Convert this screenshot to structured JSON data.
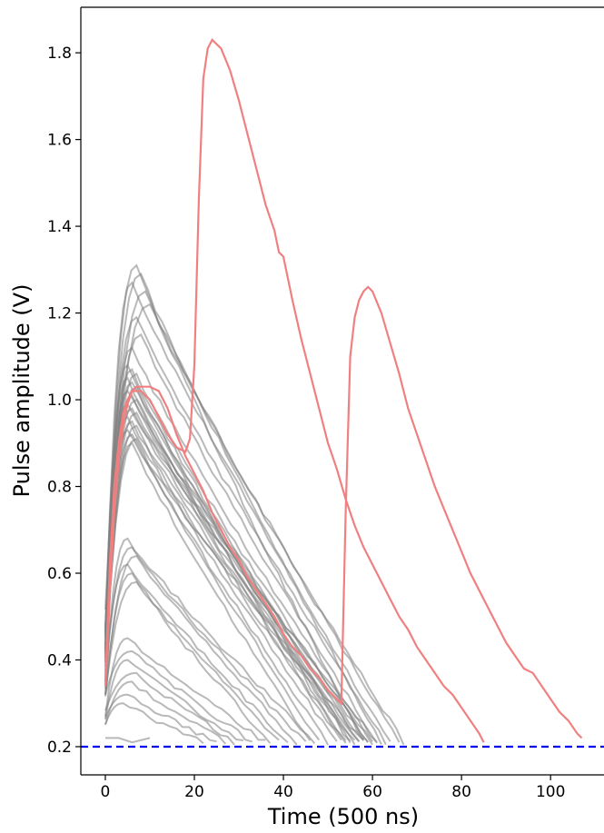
{
  "chart_data": {
    "type": "line",
    "title": "",
    "xlabel": "Time (500 ns)",
    "ylabel": "Pulse amplitude (V)",
    "xlim": [
      -5.5,
      112
    ],
    "ylim": [
      0.135,
      1.905
    ],
    "xticks": [
      0,
      20,
      40,
      60,
      80,
      100
    ],
    "yticks": [
      0.2,
      0.4,
      0.6,
      0.8,
      1.0,
      1.2,
      1.4,
      1.6,
      1.8
    ],
    "grid": false,
    "colors": {
      "gray_traces": "#808080",
      "highlighted_traces": "#f08080",
      "threshold": "#0000ee"
    },
    "threshold": {
      "y": 0.2,
      "style": "dashed"
    },
    "gray_trace_families": [
      {
        "peak_amplitudes": [
          1.31,
          1.29,
          1.27,
          1.25,
          1.22,
          1.19,
          1.15,
          1.12
        ],
        "peak_times": [
          7,
          8,
          6,
          9,
          10,
          7,
          8,
          6
        ],
        "end_times": [
          58,
          62,
          64,
          66,
          67,
          63,
          61,
          60
        ]
      },
      {
        "peak_amplitudes": [
          1.08,
          1.07,
          1.06,
          1.05,
          1.04,
          1.03,
          1.02,
          1.01,
          1.0,
          0.99,
          0.98,
          0.97,
          0.96,
          0.95,
          0.94,
          0.93,
          0.92,
          0.91,
          0.9
        ],
        "peak_times": [
          5,
          6,
          7,
          5,
          6,
          7,
          5,
          6,
          7,
          5,
          6,
          7,
          5,
          6,
          7,
          5,
          6,
          7,
          6
        ],
        "end_times": [
          55,
          57,
          59,
          54,
          56,
          58,
          60,
          53,
          55,
          57,
          59,
          61,
          52,
          54,
          56,
          58,
          50,
          48,
          46
        ]
      },
      {
        "peak_amplitudes": [
          0.68,
          0.66,
          0.64,
          0.62,
          0.6,
          0.58
        ],
        "peak_times": [
          5,
          6,
          7,
          5,
          6,
          7
        ],
        "end_times": [
          47,
          45,
          43,
          41,
          39,
          37
        ]
      },
      {
        "peak_amplitudes": [
          0.45,
          0.42,
          0.4,
          0.37,
          0.35,
          0.32,
          0.3
        ],
        "peak_times": [
          5,
          6,
          5,
          7,
          6,
          5,
          4
        ],
        "end_times": [
          36,
          33,
          31,
          29,
          27,
          25,
          22
        ]
      }
    ],
    "short_trace": {
      "x": [
        0,
        3,
        6,
        10
      ],
      "y": [
        0.22,
        0.22,
        0.21,
        0.22
      ]
    },
    "series": [
      {
        "x": [
          0,
          1,
          2,
          3,
          4,
          5,
          6,
          7,
          8,
          9,
          10,
          12,
          14,
          16,
          18,
          19,
          20,
          21,
          22,
          23,
          24,
          26,
          28,
          30,
          32,
          34,
          36,
          38,
          39,
          40,
          42,
          44,
          46,
          48,
          50,
          52,
          54,
          56,
          58,
          60,
          62,
          64,
          66,
          68,
          70,
          72,
          74,
          76,
          78,
          80,
          82,
          84,
          85
        ],
        "y": [
          0.35,
          0.62,
          0.8,
          0.9,
          0.97,
          1.0,
          1.02,
          1.02,
          1.02,
          1.01,
          1.0,
          0.96,
          0.92,
          0.89,
          0.88,
          0.91,
          1.08,
          1.46,
          1.74,
          1.81,
          1.83,
          1.81,
          1.76,
          1.69,
          1.61,
          1.53,
          1.45,
          1.39,
          1.34,
          1.33,
          1.23,
          1.14,
          1.06,
          0.98,
          0.9,
          0.84,
          0.77,
          0.71,
          0.66,
          0.62,
          0.58,
          0.54,
          0.5,
          0.47,
          0.43,
          0.4,
          0.37,
          0.34,
          0.32,
          0.29,
          0.26,
          0.23,
          0.21
        ]
      },
      {
        "x": [
          0,
          1,
          2,
          3,
          4,
          5,
          6,
          7,
          8,
          9,
          10,
          12,
          14,
          16,
          18,
          20,
          22,
          24,
          26,
          28,
          30,
          32,
          34,
          36,
          38,
          40,
          42,
          44,
          46,
          48,
          50,
          52,
          53,
          54,
          55,
          56,
          57,
          58,
          59,
          60,
          62,
          64,
          66,
          68,
          70,
          72,
          74,
          76,
          78,
          80,
          82,
          84,
          86,
          88,
          90,
          92,
          94,
          96,
          98,
          100,
          102,
          104,
          106,
          107
        ],
        "y": [
          0.34,
          0.55,
          0.74,
          0.86,
          0.94,
          0.99,
          1.02,
          1.03,
          1.03,
          1.03,
          1.03,
          1.02,
          0.98,
          0.92,
          0.87,
          0.83,
          0.79,
          0.74,
          0.7,
          0.66,
          0.63,
          0.59,
          0.56,
          0.53,
          0.5,
          0.46,
          0.43,
          0.41,
          0.38,
          0.36,
          0.33,
          0.31,
          0.3,
          0.75,
          1.1,
          1.19,
          1.23,
          1.25,
          1.26,
          1.25,
          1.2,
          1.13,
          1.06,
          0.98,
          0.92,
          0.86,
          0.8,
          0.75,
          0.7,
          0.65,
          0.6,
          0.56,
          0.52,
          0.48,
          0.44,
          0.41,
          0.38,
          0.37,
          0.34,
          0.31,
          0.28,
          0.26,
          0.23,
          0.22
        ]
      }
    ]
  }
}
